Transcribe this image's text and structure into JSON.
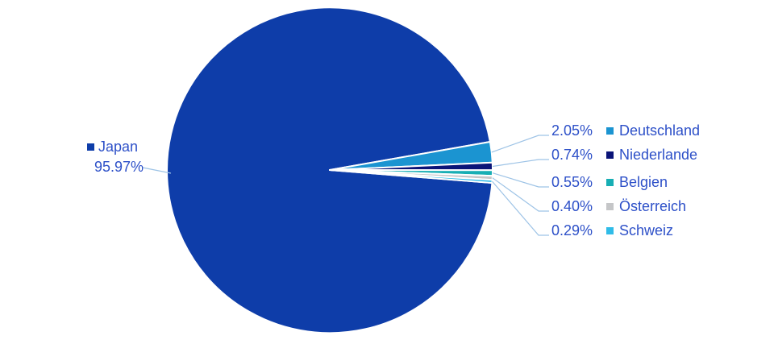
{
  "chart_data": {
    "type": "pie",
    "title": "",
    "slices": [
      {
        "label": "Japan",
        "value": 95.97,
        "pct_label": "95.97%",
        "color": "#0E3DA9"
      },
      {
        "label": "Deutschland",
        "value": 2.05,
        "pct_label": "2.05%",
        "color": "#1B94D1"
      },
      {
        "label": "Niederlande",
        "value": 0.74,
        "pct_label": "0.74%",
        "color": "#0A1478"
      },
      {
        "label": "Belgien",
        "value": 0.55,
        "pct_label": "0.55%",
        "color": "#17AEB4"
      },
      {
        "label": "Österreich",
        "value": 0.4,
        "pct_label": "0.40%",
        "color": "#C5C6C8"
      },
      {
        "label": "Schweiz",
        "value": 0.29,
        "pct_label": "0.29%",
        "color": "#30BCE8"
      }
    ],
    "layout": {
      "start_angle_deg": -4.53,
      "direction": "clockwise",
      "legend_position": "sides",
      "separator_color": "#FFFFFF",
      "leader_line_color": "#9DC3E6",
      "label_color": "#2D50C8",
      "background_color": "#FFFFFF"
    }
  }
}
